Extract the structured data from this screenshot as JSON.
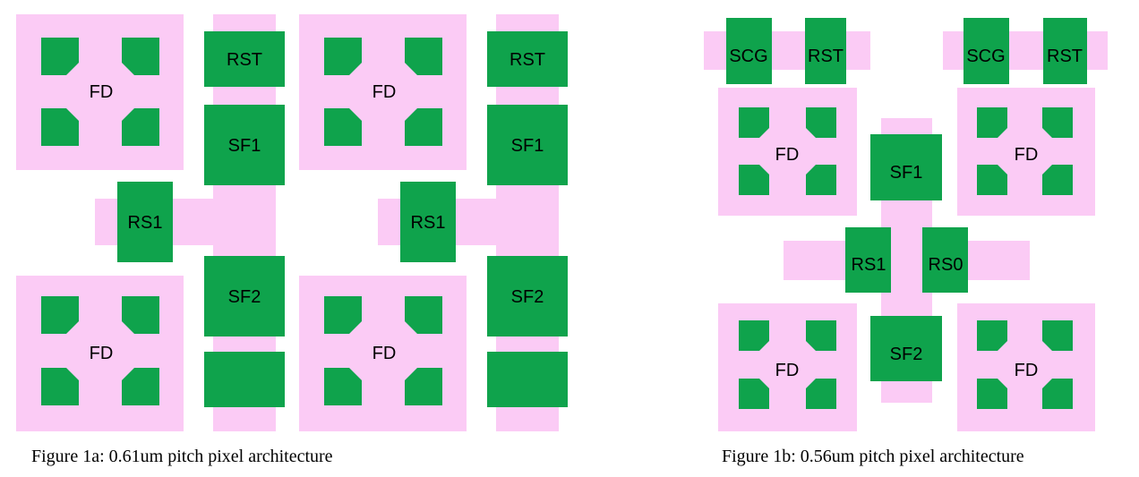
{
  "colors": {
    "background": "#ffffff",
    "diffusion": "#fbcbf5",
    "transistor": "#0fa34c",
    "text": "#000000"
  },
  "figure_a": {
    "caption": "Figure 1a: 0.61um pitch pixel architecture",
    "fd_labels": [
      "FD",
      "FD",
      "FD",
      "FD"
    ],
    "rst": [
      "RST",
      "RST"
    ],
    "sf1": [
      "SF1",
      "SF1"
    ],
    "rs1": [
      "RS1",
      "RS1"
    ],
    "sf2": [
      "SF2",
      "SF2"
    ]
  },
  "figure_b": {
    "caption": "Figure 1b: 0.56um pitch pixel architecture",
    "scg": [
      "SCG",
      "SCG"
    ],
    "rst": [
      "RST",
      "RST"
    ],
    "fd_labels": [
      "FD",
      "FD",
      "FD",
      "FD"
    ],
    "sf1": "SF1",
    "rs1": "RS1",
    "rs0": "RS0",
    "sf2": "SF2"
  }
}
